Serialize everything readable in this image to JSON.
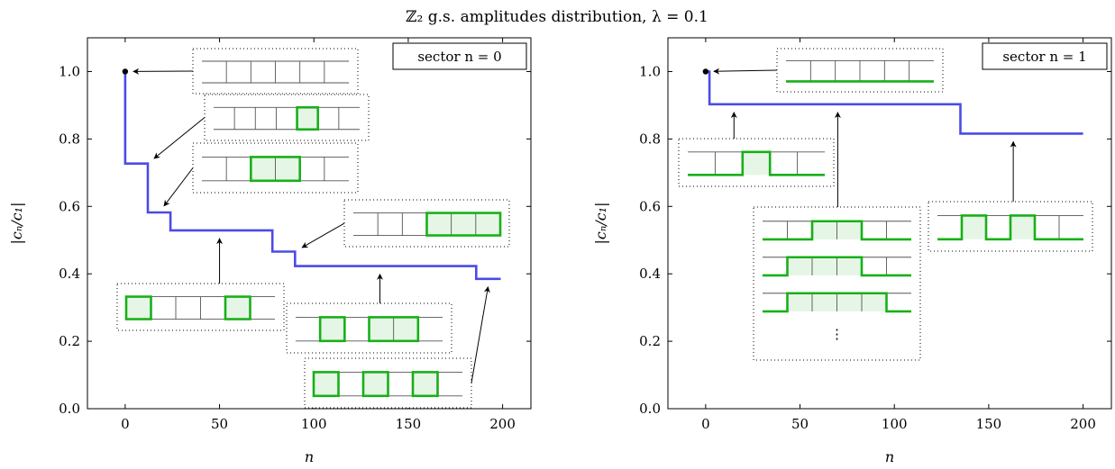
{
  "figure": {
    "title": "ℤ₂ g.s. amplitudes distribution, λ = 0.1"
  },
  "colors": {
    "line": "#4b4be6",
    "green": "#18b018",
    "green_fill": "#e6f6e6",
    "rung": "#555555"
  },
  "chart_data": [
    {
      "type": "line",
      "legend": "sector n = 0",
      "xlabel": "n",
      "ylabel": "|cₙ/c₁|",
      "xlim": [
        -20,
        215
      ],
      "ylim": [
        0,
        1.1
      ],
      "xticks": [
        0,
        50,
        100,
        150,
        200
      ],
      "yticks": [
        0.0,
        0.2,
        0.4,
        0.6,
        0.8,
        1.0
      ],
      "grid": false,
      "x": [
        0,
        0,
        12,
        12,
        24,
        24,
        78,
        78,
        90,
        90,
        186,
        186,
        199
      ],
      "y": [
        1.0,
        0.727,
        0.727,
        0.582,
        0.582,
        0.529,
        0.529,
        0.466,
        0.466,
        0.423,
        0.423,
        0.385,
        0.385
      ],
      "marker": {
        "x": 0,
        "y": 1.0
      },
      "annotations": [
        {
          "x": 0,
          "y": 1.0,
          "green": [],
          "bottom_edge": false
        },
        {
          "x": 12,
          "y": 0.727,
          "green": [
            [
              4,
              5
            ]
          ],
          "bottom_edge": false
        },
        {
          "x": 18,
          "y": 0.582,
          "green": [
            [
              2,
              4
            ]
          ],
          "bottom_edge": false
        },
        {
          "x": 50,
          "y": 0.529,
          "green": [
            [
              0,
              1
            ],
            [
              4,
              5
            ]
          ],
          "bottom_edge": false
        },
        {
          "x": 90,
          "y": 0.466,
          "green": [
            [
              3,
              6
            ]
          ],
          "bottom_edge": false
        },
        {
          "x": 135,
          "y": 0.423,
          "green": [
            [
              1,
              2
            ],
            [
              3,
              5
            ]
          ],
          "bottom_edge": false
        },
        {
          "x": 193,
          "y": 0.385,
          "green": [
            [
              0,
              1
            ],
            [
              2,
              3
            ],
            [
              4,
              5
            ]
          ],
          "bottom_edge": false
        }
      ]
    },
    {
      "type": "line",
      "legend": "sector n = 1",
      "xlabel": "n",
      "ylabel": "|cₙ/c₁|",
      "xlim": [
        -20,
        215
      ],
      "ylim": [
        0,
        1.1
      ],
      "xticks": [
        0,
        50,
        100,
        150,
        200
      ],
      "yticks": [
        0.0,
        0.2,
        0.4,
        0.6,
        0.8,
        1.0
      ],
      "grid": false,
      "x": [
        0,
        2,
        2,
        135,
        135,
        200
      ],
      "y": [
        1.0,
        1.0,
        0.903,
        0.903,
        0.816,
        0.816
      ],
      "marker": {
        "x": 0,
        "y": 1.0
      },
      "annotations": [
        {
          "x": 0,
          "y": 1.0,
          "green": [],
          "bottom_edge": true
        },
        {
          "x": 15,
          "y": 0.903,
          "green": [
            [
              2,
              3
            ]
          ],
          "bottom_edge": true
        },
        {
          "x": 70,
          "y": 0.903,
          "green": [
            [
              2,
              4
            ],
            [
              1,
              4
            ],
            [
              1,
              5
            ]
          ],
          "bottom_edge": true,
          "ellipsis": "⋮"
        },
        {
          "x": 163,
          "y": 0.816,
          "green": [
            [
              1,
              2
            ],
            [
              3,
              4
            ]
          ],
          "bottom_edge": true
        }
      ]
    }
  ]
}
